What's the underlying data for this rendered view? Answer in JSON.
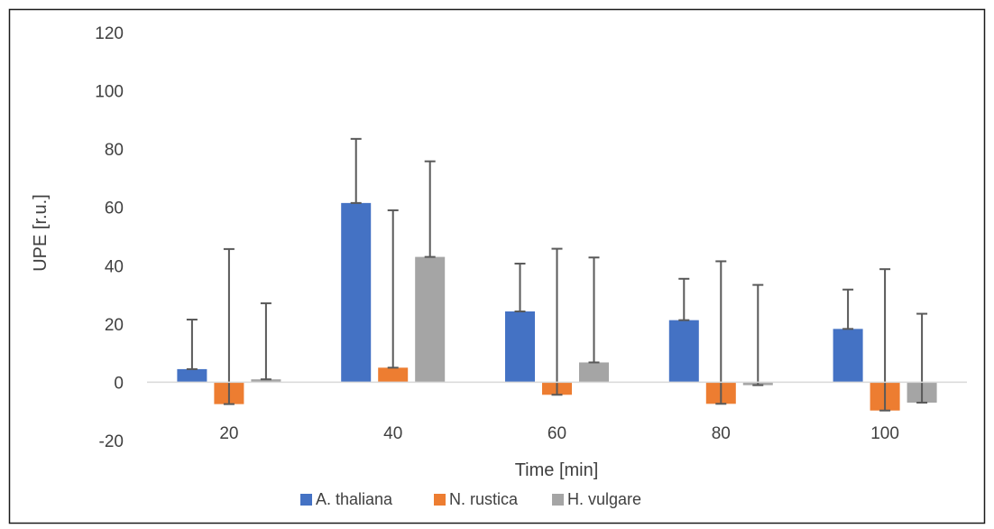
{
  "chart_data": {
    "type": "bar",
    "categories": [
      "20",
      "40",
      "60",
      "80",
      "100"
    ],
    "series": [
      {
        "name": "A. thaliana",
        "color": "#4472C4",
        "values": [
          4.5,
          61.5,
          24.3,
          21.3,
          18.3
        ],
        "error_plus": [
          17,
          22,
          16.4,
          14.2,
          13.5
        ]
      },
      {
        "name": "N. rustica",
        "color": "#ED7D31",
        "values": [
          -7.5,
          5,
          -4.3,
          -7.4,
          -9.7
        ],
        "error_plus": [
          53.2,
          54,
          50.1,
          48.9,
          48.5
        ]
      },
      {
        "name": "H. vulgare",
        "color": "#A5A5A5",
        "values": [
          1,
          43,
          6.8,
          -1,
          -7
        ],
        "error_plus": [
          26.1,
          32.8,
          36,
          34.4,
          30.5
        ]
      }
    ],
    "xlabel": "Time [min]",
    "ylabel": "UPE [r.u.]",
    "ylim": [
      -20,
      120
    ],
    "yticks": [
      "-20",
      "0",
      "20",
      "40",
      "60",
      "80",
      "100",
      "120"
    ],
    "grid": false,
    "legend_position": "bottom",
    "error_bars": true
  }
}
